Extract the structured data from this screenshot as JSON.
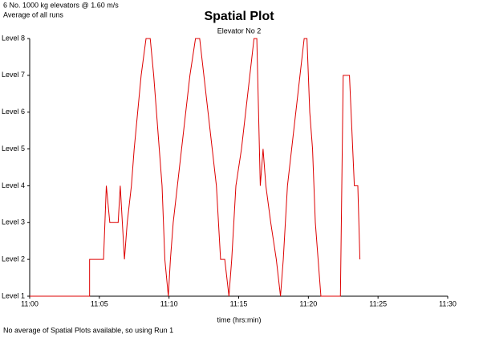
{
  "chart_data": {
    "type": "line",
    "title": "Spatial Plot",
    "subtitle": "Elevator No 2",
    "annotations": [
      "6 No. 1000 kg elevators @ 1.60 m/s",
      "Average of all runs"
    ],
    "footnote": "No average of Spatial Plots available, so using Run 1",
    "xlabel": "time (hrs:min)",
    "xlim": [
      0,
      30
    ],
    "xticks": [
      {
        "value": 0,
        "label": "11:00"
      },
      {
        "value": 5,
        "label": "11:05"
      },
      {
        "value": 10,
        "label": "11:10"
      },
      {
        "value": 15,
        "label": "11:15"
      },
      {
        "value": 20,
        "label": "11:20"
      },
      {
        "value": 25,
        "label": "11:25"
      },
      {
        "value": 30,
        "label": "11:30"
      }
    ],
    "ylim": [
      1,
      8
    ],
    "yticks": [
      {
        "value": 1,
        "label": "Level 1"
      },
      {
        "value": 2,
        "label": "Level 2"
      },
      {
        "value": 3,
        "label": "Level 3"
      },
      {
        "value": 4,
        "label": "Level 4"
      },
      {
        "value": 5,
        "label": "Level 5"
      },
      {
        "value": 6,
        "label": "Level 6"
      },
      {
        "value": 7,
        "label": "Level 7"
      },
      {
        "value": 8,
        "label": "Level 8"
      }
    ],
    "grid": false,
    "series": [
      {
        "color": "#dd0000",
        "x": [
          0,
          4.3,
          4.3,
          5.3,
          5.5,
          5.75,
          6.35,
          6.5,
          6.8,
          7.0,
          7.3,
          7.5,
          7.75,
          8.0,
          8.35,
          8.65,
          8.9,
          9.1,
          9.3,
          9.5,
          9.7,
          9.95,
          10.1,
          10.3,
          10.6,
          10.9,
          11.2,
          11.5,
          11.9,
          12.2,
          12.5,
          12.8,
          13.1,
          13.4,
          13.7,
          14.0,
          14.3,
          14.5,
          14.8,
          15.2,
          15.5,
          15.8,
          16.1,
          16.3,
          16.55,
          16.75,
          16.95,
          17.3,
          17.7,
          18.0,
          18.2,
          18.5,
          18.8,
          19.1,
          19.4,
          19.7,
          19.9,
          20.1,
          20.3,
          20.5,
          20.7,
          20.9,
          22.3,
          22.5,
          22.95,
          23.3,
          23.55,
          23.7
        ],
        "values": [
          1,
          1,
          2,
          2,
          4,
          3,
          3,
          4,
          2,
          3,
          4,
          5,
          6,
          7,
          8,
          8,
          7,
          6,
          5,
          4,
          2,
          1,
          2,
          3,
          4,
          5,
          6,
          7,
          8,
          8,
          7,
          6,
          5,
          4,
          2,
          2,
          1,
          2,
          4,
          5,
          6,
          7,
          8,
          8,
          4,
          5,
          4,
          3,
          2,
          1,
          2,
          4,
          5,
          6,
          7,
          8,
          8,
          6,
          5,
          3,
          2,
          1,
          1,
          7,
          7,
          4,
          4,
          2
        ]
      }
    ]
  }
}
